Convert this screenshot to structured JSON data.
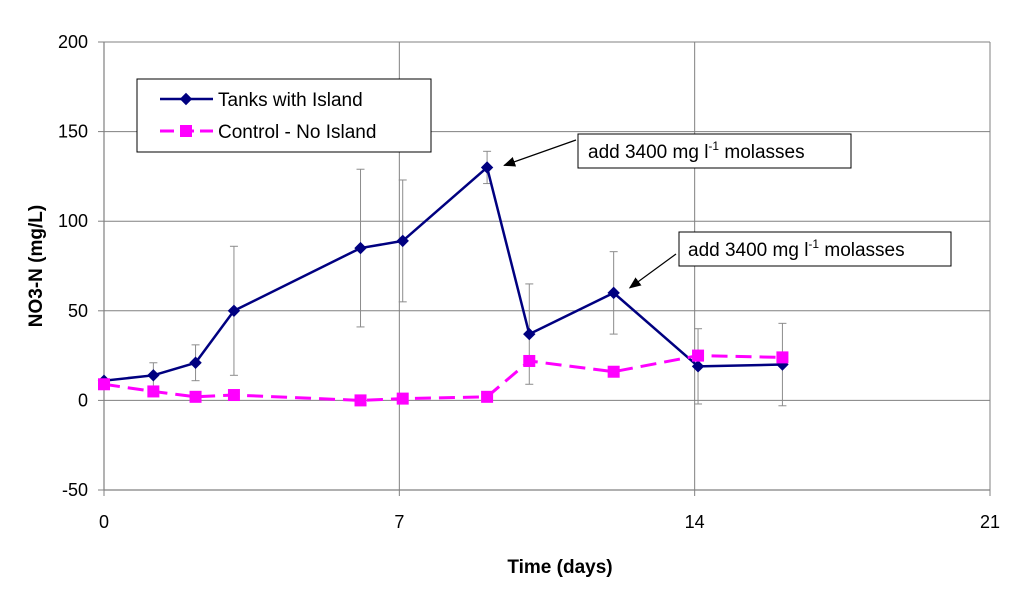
{
  "chart_data": {
    "type": "line",
    "title": "",
    "xlabel": "Time (days)",
    "ylabel": "NO3-N (mg/L)",
    "xlim": [
      0,
      21
    ],
    "ylim": [
      -50,
      200
    ],
    "x_ticks": [
      "0",
      "7",
      "14",
      "21"
    ],
    "y_ticks": [
      "-50",
      "0",
      "50",
      "100",
      "150",
      "200"
    ],
    "grid": true,
    "legend_position": "top-left",
    "series": [
      {
        "name": "Tanks with Island",
        "color": "#000080",
        "marker": "diamond",
        "line_style": "solid",
        "x": [
          0,
          1.17,
          2.17,
          3.08,
          6.08,
          7.08,
          9.08,
          10.08,
          12.08,
          14.08,
          16.08
        ],
        "y": [
          11,
          14,
          21,
          50,
          85,
          89,
          130,
          37,
          60,
          19,
          20
        ],
        "error": [
          0,
          7,
          10,
          36,
          44,
          34,
          9,
          28,
          23,
          21,
          23
        ]
      },
      {
        "name": "Control - No Island",
        "color": "#ff00ff",
        "marker": "square",
        "line_style": "dashed",
        "x": [
          0,
          1.17,
          2.17,
          3.08,
          6.08,
          7.08,
          9.08,
          10.08,
          12.08,
          14.08,
          16.08
        ],
        "y": [
          9,
          5,
          2,
          3,
          0,
          1,
          2,
          22,
          16,
          25,
          24
        ]
      }
    ],
    "annotations": [
      {
        "text_before": "add 3400 mg l",
        "superscript": "-1",
        "text_after": " molasses",
        "target_x": 9.08,
        "target_y": 130
      },
      {
        "text_before": "add 3400 mg l",
        "superscript": "-1",
        "text_after": " molasses",
        "target_x": 12.08,
        "target_y": 60
      }
    ]
  }
}
